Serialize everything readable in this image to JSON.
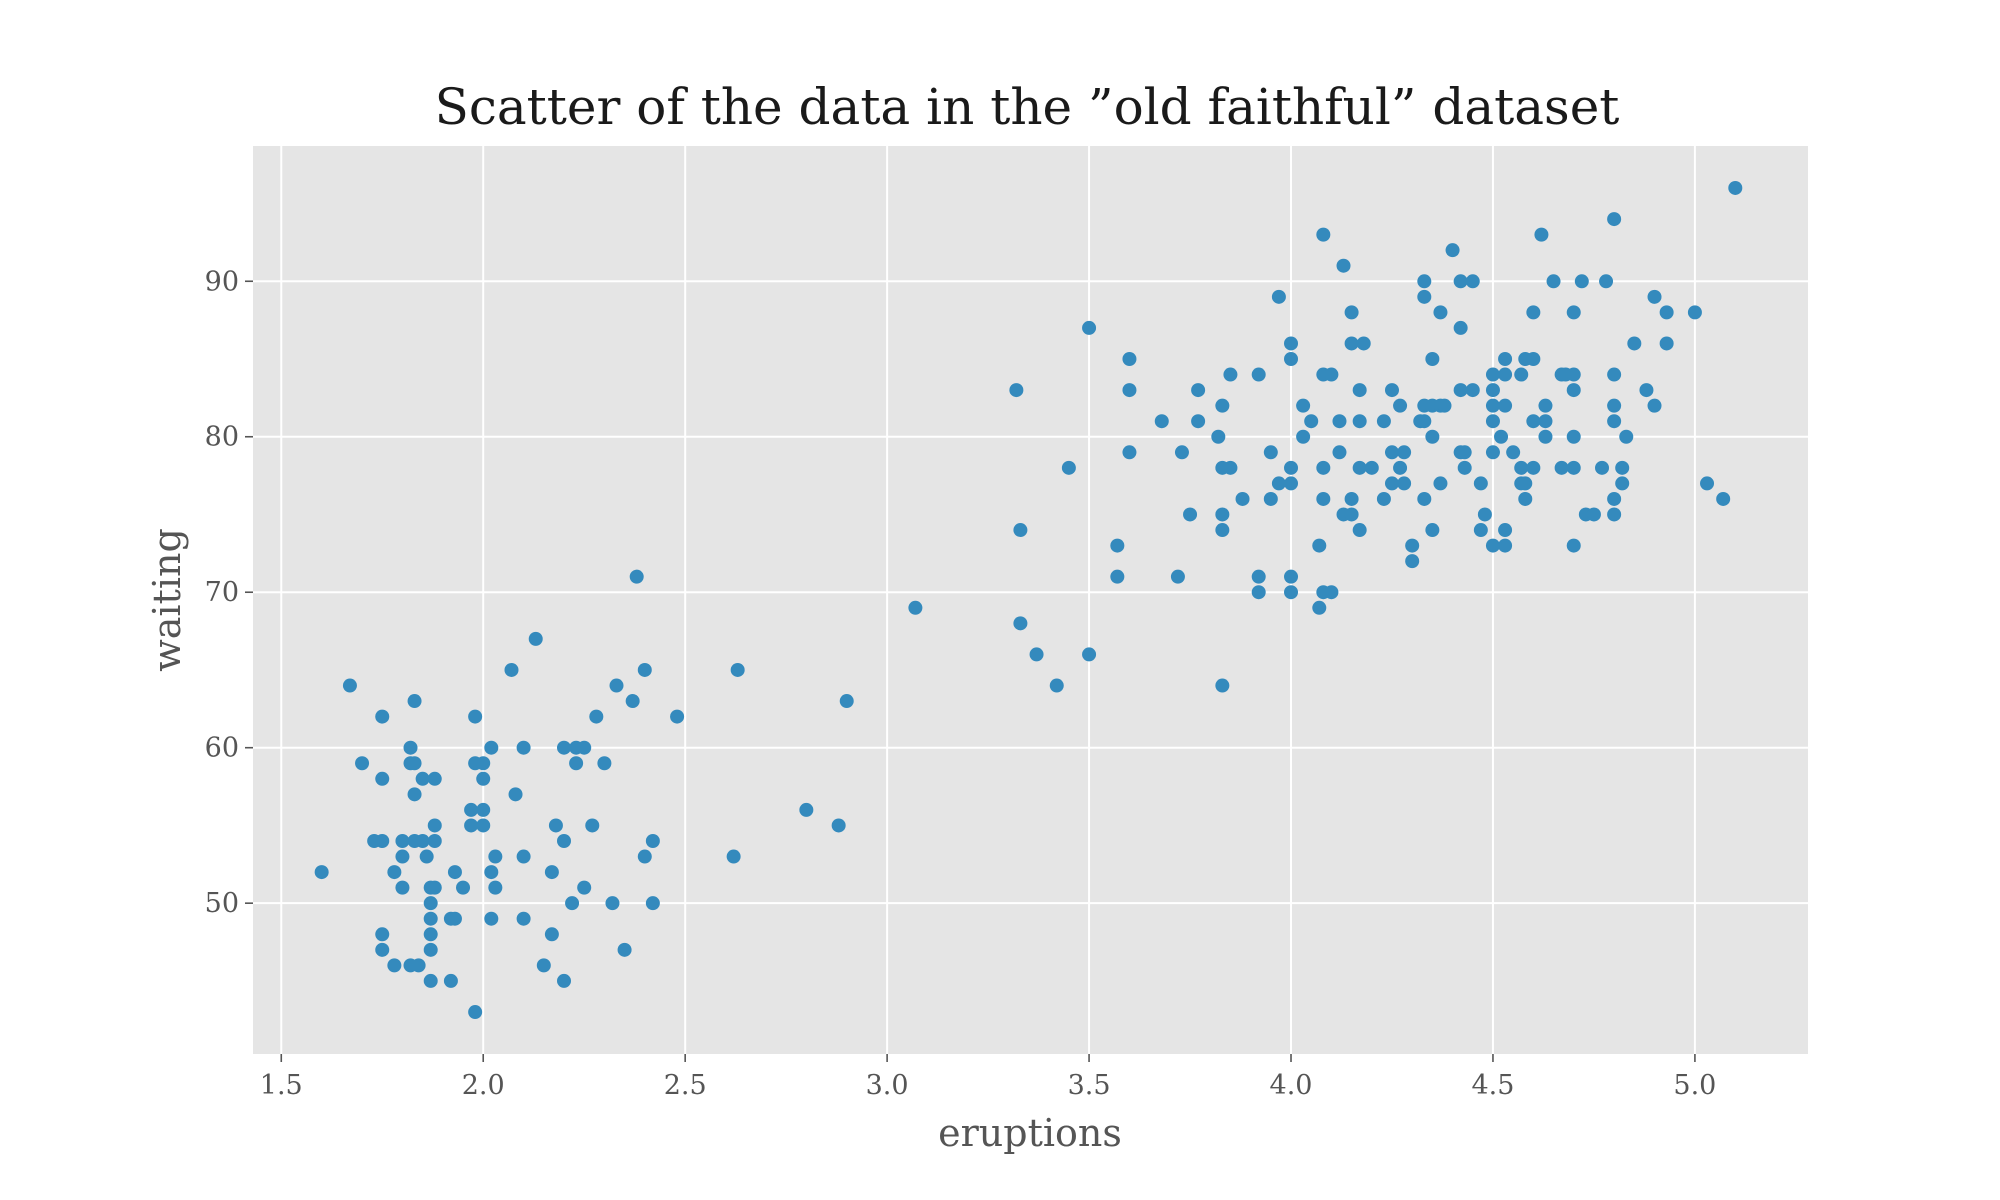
{
  "chart_data": {
    "type": "scatter",
    "title": "Scatter of the data in the ”old faithful” dataset",
    "xlabel": "eruptions",
    "ylabel": "waiting",
    "xlim": [
      1.43,
      5.28
    ],
    "ylim": [
      40.3,
      98.7
    ],
    "xticks": [
      1.5,
      2.0,
      2.5,
      3.0,
      3.5,
      4.0,
      4.5,
      5.0
    ],
    "xtick_labels": [
      "1.5",
      "2.0",
      "2.5",
      "3.0",
      "3.5",
      "4.0",
      "4.5",
      "5.0"
    ],
    "yticks": [
      50,
      60,
      70,
      80,
      90
    ],
    "ytick_labels": [
      "50",
      "60",
      "70",
      "80",
      "90"
    ],
    "grid": true,
    "colors": {
      "background": "#e5e5e5",
      "marker": "#348abd",
      "grid": "#ffffff"
    },
    "points": [
      [
        1.6,
        52
      ],
      [
        1.67,
        64
      ],
      [
        1.7,
        59
      ],
      [
        1.73,
        54
      ],
      [
        1.75,
        54
      ],
      [
        1.75,
        62
      ],
      [
        1.75,
        58
      ],
      [
        1.75,
        48
      ],
      [
        1.75,
        47
      ],
      [
        1.78,
        46
      ],
      [
        1.78,
        52
      ],
      [
        1.8,
        54
      ],
      [
        1.8,
        53
      ],
      [
        1.8,
        51
      ],
      [
        1.82,
        60
      ],
      [
        1.82,
        59
      ],
      [
        1.82,
        46
      ],
      [
        1.83,
        54
      ],
      [
        1.83,
        59
      ],
      [
        1.83,
        63
      ],
      [
        1.83,
        57
      ],
      [
        1.84,
        46
      ],
      [
        1.85,
        54
      ],
      [
        1.85,
        58
      ],
      [
        1.86,
        53
      ],
      [
        1.87,
        45
      ],
      [
        1.87,
        47
      ],
      [
        1.87,
        48
      ],
      [
        1.87,
        49
      ],
      [
        1.87,
        50
      ],
      [
        1.87,
        51
      ],
      [
        1.88,
        55
      ],
      [
        1.88,
        54
      ],
      [
        1.88,
        58
      ],
      [
        1.88,
        51
      ],
      [
        1.92,
        45
      ],
      [
        1.92,
        49
      ],
      [
        1.93,
        52
      ],
      [
        1.93,
        49
      ],
      [
        1.95,
        51
      ],
      [
        1.97,
        56
      ],
      [
        1.97,
        55
      ],
      [
        1.98,
        59
      ],
      [
        1.98,
        62
      ],
      [
        1.98,
        43
      ],
      [
        2.0,
        59
      ],
      [
        2.0,
        58
      ],
      [
        2.0,
        56
      ],
      [
        2.0,
        55
      ],
      [
        2.02,
        60
      ],
      [
        2.02,
        52
      ],
      [
        2.02,
        49
      ],
      [
        2.03,
        53
      ],
      [
        2.03,
        51
      ],
      [
        2.07,
        65
      ],
      [
        2.08,
        57
      ],
      [
        2.1,
        60
      ],
      [
        2.1,
        53
      ],
      [
        2.1,
        49
      ],
      [
        2.13,
        67
      ],
      [
        2.15,
        46
      ],
      [
        2.17,
        52
      ],
      [
        2.17,
        48
      ],
      [
        2.18,
        55
      ],
      [
        2.2,
        60
      ],
      [
        2.2,
        54
      ],
      [
        2.2,
        45
      ],
      [
        2.22,
        50
      ],
      [
        2.23,
        60
      ],
      [
        2.23,
        59
      ],
      [
        2.25,
        60
      ],
      [
        2.25,
        51
      ],
      [
        2.27,
        55
      ],
      [
        2.28,
        62
      ],
      [
        2.3,
        59
      ],
      [
        2.32,
        50
      ],
      [
        2.33,
        64
      ],
      [
        2.35,
        47
      ],
      [
        2.37,
        63
      ],
      [
        2.38,
        71
      ],
      [
        2.4,
        65
      ],
      [
        2.4,
        53
      ],
      [
        2.42,
        54
      ],
      [
        2.42,
        50
      ],
      [
        2.48,
        62
      ],
      [
        2.62,
        53
      ],
      [
        2.63,
        65
      ],
      [
        2.8,
        56
      ],
      [
        2.88,
        55
      ],
      [
        2.9,
        63
      ],
      [
        3.07,
        69
      ],
      [
        3.32,
        83
      ],
      [
        3.33,
        74
      ],
      [
        3.33,
        68
      ],
      [
        3.37,
        66
      ],
      [
        3.42,
        64
      ],
      [
        3.45,
        78
      ],
      [
        3.5,
        87
      ],
      [
        3.5,
        66
      ],
      [
        3.57,
        73
      ],
      [
        3.57,
        71
      ],
      [
        3.6,
        85
      ],
      [
        3.6,
        83
      ],
      [
        3.6,
        79
      ],
      [
        3.68,
        81
      ],
      [
        3.72,
        71
      ],
      [
        3.73,
        79
      ],
      [
        3.75,
        75
      ],
      [
        3.77,
        83
      ],
      [
        3.77,
        81
      ],
      [
        3.82,
        80
      ],
      [
        3.83,
        82
      ],
      [
        3.83,
        78
      ],
      [
        3.83,
        75
      ],
      [
        3.83,
        74
      ],
      [
        3.83,
        64
      ],
      [
        3.85,
        84
      ],
      [
        3.85,
        78
      ],
      [
        3.88,
        76
      ],
      [
        3.92,
        84
      ],
      [
        3.92,
        71
      ],
      [
        3.92,
        70
      ],
      [
        3.95,
        79
      ],
      [
        3.95,
        76
      ],
      [
        3.97,
        89
      ],
      [
        3.97,
        77
      ],
      [
        4.0,
        86
      ],
      [
        4.0,
        85
      ],
      [
        4.0,
        78
      ],
      [
        4.0,
        77
      ],
      [
        4.0,
        71
      ],
      [
        4.0,
        70
      ],
      [
        4.03,
        82
      ],
      [
        4.03,
        80
      ],
      [
        4.05,
        81
      ],
      [
        4.07,
        73
      ],
      [
        4.07,
        69
      ],
      [
        4.08,
        93
      ],
      [
        4.08,
        84
      ],
      [
        4.08,
        78
      ],
      [
        4.08,
        76
      ],
      [
        4.08,
        70
      ],
      [
        4.1,
        84
      ],
      [
        4.1,
        70
      ],
      [
        4.12,
        81
      ],
      [
        4.12,
        79
      ],
      [
        4.13,
        91
      ],
      [
        4.13,
        75
      ],
      [
        4.15,
        88
      ],
      [
        4.15,
        86
      ],
      [
        4.15,
        76
      ],
      [
        4.15,
        75
      ],
      [
        4.17,
        83
      ],
      [
        4.17,
        81
      ],
      [
        4.17,
        78
      ],
      [
        4.17,
        74
      ],
      [
        4.18,
        86
      ],
      [
        4.2,
        78
      ],
      [
        4.23,
        81
      ],
      [
        4.23,
        76
      ],
      [
        4.25,
        83
      ],
      [
        4.25,
        79
      ],
      [
        4.25,
        77
      ],
      [
        4.27,
        82
      ],
      [
        4.27,
        78
      ],
      [
        4.28,
        79
      ],
      [
        4.28,
        77
      ],
      [
        4.3,
        73
      ],
      [
        4.3,
        72
      ],
      [
        4.32,
        81
      ],
      [
        4.33,
        90
      ],
      [
        4.33,
        89
      ],
      [
        4.33,
        82
      ],
      [
        4.33,
        81
      ],
      [
        4.33,
        76
      ],
      [
        4.35,
        85
      ],
      [
        4.35,
        82
      ],
      [
        4.35,
        80
      ],
      [
        4.35,
        74
      ],
      [
        4.37,
        88
      ],
      [
        4.37,
        82
      ],
      [
        4.37,
        77
      ],
      [
        4.38,
        82
      ],
      [
        4.4,
        92
      ],
      [
        4.42,
        90
      ],
      [
        4.42,
        87
      ],
      [
        4.42,
        83
      ],
      [
        4.42,
        79
      ],
      [
        4.43,
        79
      ],
      [
        4.43,
        78
      ],
      [
        4.45,
        90
      ],
      [
        4.45,
        83
      ],
      [
        4.47,
        77
      ],
      [
        4.47,
        74
      ],
      [
        4.48,
        75
      ],
      [
        4.5,
        84
      ],
      [
        4.5,
        83
      ],
      [
        4.5,
        82
      ],
      [
        4.5,
        81
      ],
      [
        4.5,
        79
      ],
      [
        4.5,
        73
      ],
      [
        4.52,
        80
      ],
      [
        4.53,
        85
      ],
      [
        4.53,
        84
      ],
      [
        4.53,
        82
      ],
      [
        4.53,
        74
      ],
      [
        4.53,
        73
      ],
      [
        4.55,
        79
      ],
      [
        4.57,
        84
      ],
      [
        4.57,
        78
      ],
      [
        4.57,
        77
      ],
      [
        4.58,
        85
      ],
      [
        4.58,
        77
      ],
      [
        4.58,
        76
      ],
      [
        4.6,
        88
      ],
      [
        4.6,
        85
      ],
      [
        4.6,
        81
      ],
      [
        4.6,
        78
      ],
      [
        4.62,
        93
      ],
      [
        4.63,
        82
      ],
      [
        4.63,
        81
      ],
      [
        4.63,
        80
      ],
      [
        4.65,
        90
      ],
      [
        4.67,
        84
      ],
      [
        4.67,
        78
      ],
      [
        4.68,
        84
      ],
      [
        4.7,
        88
      ],
      [
        4.7,
        84
      ],
      [
        4.7,
        83
      ],
      [
        4.7,
        80
      ],
      [
        4.7,
        78
      ],
      [
        4.7,
        73
      ],
      [
        4.72,
        90
      ],
      [
        4.73,
        75
      ],
      [
        4.75,
        75
      ],
      [
        4.77,
        78
      ],
      [
        4.78,
        90
      ],
      [
        4.8,
        94
      ],
      [
        4.8,
        84
      ],
      [
        4.8,
        82
      ],
      [
        4.8,
        81
      ],
      [
        4.8,
        76
      ],
      [
        4.8,
        75
      ],
      [
        4.82,
        78
      ],
      [
        4.82,
        77
      ],
      [
        4.83,
        80
      ],
      [
        4.85,
        86
      ],
      [
        4.88,
        83
      ],
      [
        4.9,
        89
      ],
      [
        4.9,
        82
      ],
      [
        4.93,
        88
      ],
      [
        4.93,
        86
      ],
      [
        5.0,
        88
      ],
      [
        5.03,
        77
      ],
      [
        5.07,
        76
      ],
      [
        5.1,
        96
      ]
    ]
  }
}
